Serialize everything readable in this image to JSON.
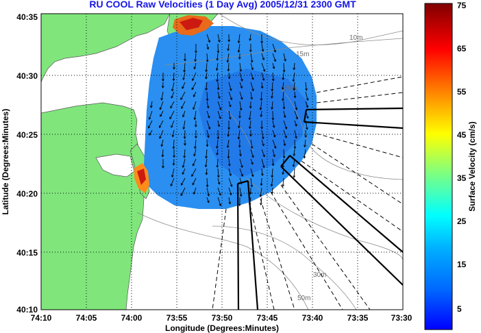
{
  "title": "RU COOL Raw Velocities (1 Day Avg) 2005/12/31 2300 GMT",
  "map": {
    "x_axis_label": "Longitude (Degrees:Minutes)",
    "y_axis_label": "Latitude (Degrees:Minutes)",
    "x_ticks": [
      "74:10",
      "74:05",
      "74:00",
      "73:55",
      "73:50",
      "73:45",
      "73:40",
      "73:35",
      "73:30"
    ],
    "y_ticks": [
      "40:35",
      "40:30",
      "40:25",
      "40:20",
      "40:15",
      "40:10"
    ],
    "lon_range_deg_west": [
      74.1667,
      73.5
    ],
    "lat_range_deg_north": [
      40.1667,
      40.5833
    ],
    "contour_labels": [
      "15m",
      "10m",
      "20m",
      "30m",
      "50m"
    ],
    "grid": true
  },
  "colorbar": {
    "label": "Surface Velocity (cm/s)",
    "ticks": [
      "75",
      "65",
      "55",
      "45",
      "35",
      "25",
      "15",
      "5"
    ],
    "min": 0,
    "max": 75,
    "colors": [
      "#0000ff",
      "#0066ff",
      "#00b0ff",
      "#00ffff",
      "#7fff7f",
      "#ffff00",
      "#ff8c00",
      "#ff0000",
      "#800000"
    ]
  },
  "colors": {
    "land": "#80e67c",
    "ocean_field": "#2a90f0",
    "title": "#1515e6"
  }
}
